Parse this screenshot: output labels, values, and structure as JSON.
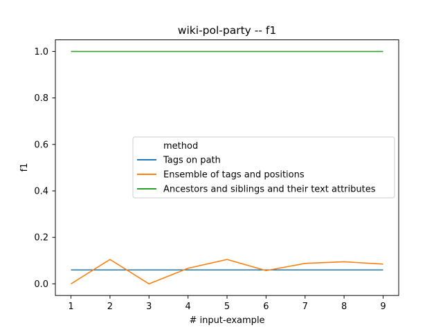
{
  "chart_data": {
    "type": "line",
    "title": "wiki-pol-party -- f1",
    "xlabel": "# input-example",
    "ylabel": "f1",
    "x": [
      1,
      2,
      3,
      4,
      5,
      6,
      7,
      8,
      9
    ],
    "xticks": [
      "1",
      "2",
      "3",
      "4",
      "5",
      "6",
      "7",
      "8",
      "9"
    ],
    "yticks": [
      "0.0",
      "0.2",
      "0.4",
      "0.6",
      "0.8",
      "1.0"
    ],
    "xlim": [
      0.6,
      9.4
    ],
    "ylim": [
      -0.05,
      1.05
    ],
    "grid": false,
    "legend": {
      "title": "method",
      "placement": "center-right"
    },
    "series": [
      {
        "name": "Tags on path",
        "color": "#1f77b4",
        "values": [
          0.06,
          0.06,
          0.06,
          0.06,
          0.06,
          0.06,
          0.06,
          0.06,
          0.06
        ]
      },
      {
        "name": "Ensemble of tags and positions",
        "color": "#ff7f0e",
        "values": [
          0.0,
          0.105,
          0.0,
          0.067,
          0.105,
          0.057,
          0.088,
          0.095,
          0.085
        ]
      },
      {
        "name": "Ancestors and siblings and their text attributes",
        "color": "#2ca02c",
        "values": [
          1.0,
          1.0,
          1.0,
          1.0,
          1.0,
          1.0,
          1.0,
          1.0,
          1.0
        ]
      }
    ]
  }
}
